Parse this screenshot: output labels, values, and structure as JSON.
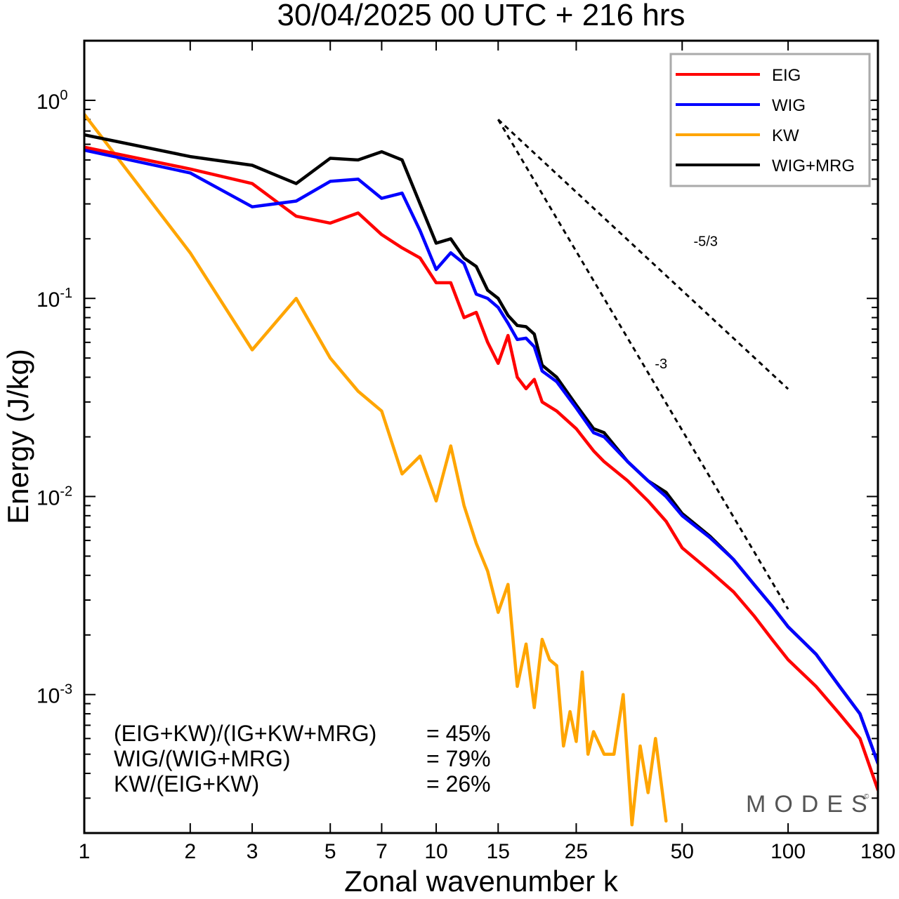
{
  "chart_data": {
    "type": "line",
    "title": "30/04/2025  00 UTC  + 216 hrs",
    "xlabel": "Zonal wavenumber k",
    "ylabel": "Energy (J/kg)",
    "xscale": "log",
    "yscale": "log",
    "xlim": [
      1,
      180
    ],
    "ylim": [
      0.0002,
      2.0
    ],
    "xticks": [
      1,
      2,
      3,
      5,
      7,
      10,
      15,
      25,
      50,
      100,
      180
    ],
    "yticks": [
      {
        "value": 1.0,
        "base": "10",
        "exp": "0"
      },
      {
        "value": 0.1,
        "base": "10",
        "exp": "-1"
      },
      {
        "value": 0.01,
        "base": "10",
        "exp": "-2"
      },
      {
        "value": 0.001,
        "base": "10",
        "exp": "-3"
      }
    ],
    "legend_position": "top-right",
    "series": [
      {
        "name": "EIG",
        "color": "#ff0000",
        "x": [
          1,
          2,
          3,
          4,
          5,
          6,
          7,
          8,
          9,
          10,
          11,
          12,
          13,
          14,
          15,
          16,
          17,
          18,
          19,
          20,
          22,
          25,
          28,
          30,
          35,
          40,
          45,
          50,
          60,
          70,
          80,
          90,
          100,
          120,
          140,
          160,
          180
        ],
        "y": [
          0.58,
          0.45,
          0.38,
          0.26,
          0.24,
          0.27,
          0.21,
          0.18,
          0.16,
          0.12,
          0.12,
          0.08,
          0.085,
          0.06,
          0.047,
          0.065,
          0.04,
          0.035,
          0.039,
          0.03,
          0.027,
          0.022,
          0.017,
          0.015,
          0.012,
          0.0095,
          0.0075,
          0.0055,
          0.0042,
          0.0033,
          0.0025,
          0.0019,
          0.0015,
          0.0011,
          0.0008,
          0.0006,
          0.00033
        ]
      },
      {
        "name": "WIG",
        "color": "#0000ff",
        "x": [
          1,
          2,
          3,
          4,
          5,
          6,
          7,
          8,
          9,
          10,
          11,
          12,
          13,
          14,
          15,
          16,
          17,
          18,
          19,
          20,
          22,
          25,
          28,
          30,
          35,
          40,
          45,
          50,
          60,
          70,
          80,
          90,
          100,
          120,
          140,
          160,
          180
        ],
        "y": [
          0.56,
          0.43,
          0.29,
          0.31,
          0.39,
          0.4,
          0.32,
          0.34,
          0.22,
          0.14,
          0.17,
          0.15,
          0.105,
          0.1,
          0.09,
          0.075,
          0.062,
          0.063,
          0.057,
          0.043,
          0.038,
          0.028,
          0.021,
          0.02,
          0.015,
          0.012,
          0.01,
          0.008,
          0.0062,
          0.0048,
          0.0036,
          0.0028,
          0.0022,
          0.0016,
          0.0011,
          0.0008,
          0.00045
        ]
      },
      {
        "name": "KW",
        "color": "#ffa500",
        "x": [
          1,
          2,
          3,
          4,
          5,
          6,
          7,
          8,
          9,
          10,
          11,
          12,
          13,
          14,
          15,
          16,
          17,
          18,
          19,
          20,
          21,
          22,
          23,
          24,
          25,
          26,
          27,
          28,
          30,
          32,
          34,
          36,
          38,
          40,
          42,
          45
        ],
        "y": [
          0.85,
          0.17,
          0.055,
          0.1,
          0.05,
          0.034,
          0.027,
          0.013,
          0.016,
          0.0095,
          0.018,
          0.009,
          0.0058,
          0.0042,
          0.0026,
          0.0036,
          0.0011,
          0.0018,
          0.00086,
          0.0019,
          0.0015,
          0.0014,
          0.00055,
          0.00082,
          0.00058,
          0.0013,
          0.0005,
          0.00065,
          0.0005,
          0.0005,
          0.001,
          0.00022,
          0.00055,
          0.00032,
          0.0006,
          0.00023
        ]
      },
      {
        "name": "WIG+MRG",
        "color": "#000000",
        "x": [
          1,
          2,
          3,
          4,
          5,
          6,
          7,
          8,
          9,
          10,
          11,
          12,
          13,
          14,
          15,
          16,
          17,
          18,
          19,
          20,
          22,
          25,
          28,
          30,
          35,
          40,
          45,
          50,
          60,
          70,
          80,
          90,
          100,
          120,
          140,
          160,
          180
        ],
        "y": [
          0.67,
          0.52,
          0.47,
          0.38,
          0.51,
          0.5,
          0.55,
          0.5,
          0.3,
          0.19,
          0.2,
          0.16,
          0.145,
          0.11,
          0.1,
          0.082,
          0.073,
          0.072,
          0.066,
          0.046,
          0.04,
          0.029,
          0.022,
          0.021,
          0.015,
          0.012,
          0.0105,
          0.0082,
          0.0063,
          0.0048,
          0.0036,
          0.0028,
          0.0022,
          0.0016,
          0.0011,
          0.0008,
          0.00045
        ]
      }
    ],
    "reference_lines": [
      {
        "label": "-5/3",
        "x": [
          15,
          100
        ],
        "y": [
          0.8,
          0.0349
        ]
      },
      {
        "label": "-3",
        "x": [
          15,
          100
        ],
        "y": [
          0.8,
          0.0027
        ]
      }
    ],
    "annotations": [
      {
        "label": "(EIG+KW)/(IG+KW+MRG)",
        "value": "= 45%"
      },
      {
        "label": "WIG/(WIG+MRG)",
        "value": "= 79%"
      },
      {
        "label": "KW/(EIG+KW)",
        "value": "= 26%"
      }
    ]
  },
  "watermark": "MODES",
  "watermark_mark": "©"
}
